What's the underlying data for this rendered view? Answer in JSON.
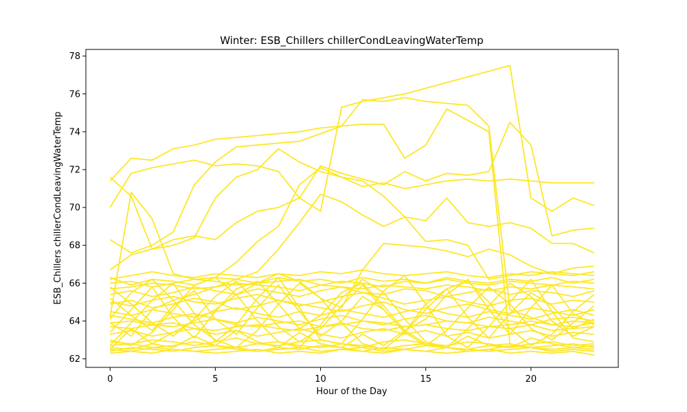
{
  "chart_data": {
    "type": "line",
    "title": "Winter: ESB_Chillers chillerCondLeavingWaterTemp",
    "xlabel": "Hour of the Day",
    "ylabel": "ESB_Chillers chillerCondLeavingWaterTemp",
    "xlim": [
      -1.15,
      24.15
    ],
    "ylim": [
      61.55,
      78.35
    ],
    "xticks": [
      0,
      5,
      10,
      15,
      20
    ],
    "yticks": [
      62,
      64,
      66,
      68,
      70,
      72,
      74,
      76,
      78
    ],
    "grid": false,
    "legend": "none",
    "line_color": "#fde725",
    "x": [
      0,
      1,
      2,
      3,
      4,
      5,
      6,
      7,
      8,
      9,
      10,
      11,
      12,
      13,
      14,
      15,
      16,
      17,
      18,
      19,
      20,
      21,
      22,
      23
    ],
    "series": [
      {
        "values": [
          71.4,
          72.6,
          72.5,
          73.1,
          73.3,
          73.6,
          73.7,
          73.8,
          73.9,
          74.0,
          74.2,
          74.3,
          74.4,
          74.4,
          72.6,
          73.3,
          75.2,
          74.6,
          74.0,
          62.8,
          62.6,
          62.4,
          62.5,
          62.4
        ]
      },
      {
        "values": [
          70.0,
          71.8,
          72.1,
          72.3,
          72.5,
          72.2,
          72.3,
          72.2,
          71.9,
          70.5,
          69.8,
          75.3,
          75.6,
          75.8,
          76.0,
          76.3,
          76.6,
          76.9,
          77.2,
          77.5,
          70.5,
          69.8,
          70.5,
          70.1
        ]
      },
      {
        "values": [
          71.6,
          70.6,
          67.8,
          68.3,
          68.5,
          68.3,
          69.2,
          69.8,
          70.0,
          70.5,
          72.2,
          71.8,
          71.5,
          71.2,
          71.9,
          71.4,
          71.8,
          71.7,
          71.9,
          74.5,
          73.3,
          68.5,
          68.8,
          68.9
        ]
      },
      {
        "values": [
          68.3,
          67.6,
          68.0,
          68.7,
          71.2,
          72.4,
          73.2,
          73.3,
          73.4,
          73.5,
          73.9,
          74.3,
          75.7,
          75.6,
          75.8,
          75.6,
          75.5,
          75.4,
          74.3,
          64.6,
          64.2,
          63.8,
          64.0,
          63.9
        ]
      },
      {
        "values": [
          66.7,
          67.5,
          67.8,
          68.0,
          68.4,
          70.5,
          71.6,
          72.0,
          73.1,
          72.4,
          71.9,
          71.6,
          71.1,
          71.3,
          71.0,
          71.2,
          71.4,
          71.5,
          71.4,
          71.5,
          71.4,
          71.3,
          71.3,
          71.3
        ]
      },
      {
        "values": [
          64.2,
          70.8,
          69.4,
          66.5,
          66.2,
          66.3,
          67.1,
          68.2,
          69.0,
          71.2,
          72.1,
          71.6,
          71.4,
          70.6,
          69.5,
          68.2,
          68.3,
          68.0,
          66.2,
          66.4,
          66.6,
          66.5,
          66.4,
          66.6
        ]
      },
      {
        "values": [
          63.9,
          63.2,
          64.6,
          65.1,
          65.4,
          65.8,
          66.2,
          66.6,
          67.8,
          69.2,
          70.7,
          70.3,
          69.6,
          69.0,
          69.5,
          69.3,
          70.5,
          69.2,
          69.0,
          69.2,
          68.9,
          68.1,
          68.1,
          67.6
        ]
      },
      {
        "values": [
          62.6,
          62.5,
          62.8,
          63.4,
          64.0,
          64.6,
          65.4,
          66.0,
          66.5,
          66.1,
          65.2,
          64.7,
          66.7,
          68.1,
          68.0,
          67.9,
          67.7,
          67.4,
          67.8,
          67.5,
          66.9,
          66.5,
          66.8,
          66.9
        ]
      },
      {
        "values": [
          66.2,
          66.4,
          66.6,
          66.4,
          66.3,
          66.5,
          66.4,
          66.3,
          66.5,
          66.4,
          66.6,
          66.5,
          66.7,
          66.5,
          66.4,
          66.5,
          66.6,
          66.4,
          66.3,
          66.5,
          66.4,
          66.6,
          66.5,
          66.4
        ]
      },
      {
        "values": [
          66.0,
          66.1,
          65.8,
          66.0,
          66.2,
          66.1,
          65.9,
          66.0,
          66.1,
          66.2,
          65.9,
          66.1,
          66.0,
          65.8,
          66.1,
          66.0,
          66.2,
          66.0,
          65.9,
          66.1,
          66.0,
          65.9,
          66.1,
          66.0
        ]
      },
      {
        "values": [
          65.7,
          65.8,
          66.0,
          65.9,
          65.7,
          65.8,
          66.0,
          65.9,
          65.8,
          65.6,
          65.9,
          65.8,
          65.7,
          65.9,
          65.8,
          65.7,
          65.9,
          65.8,
          65.6,
          65.8,
          65.7,
          65.9,
          65.8,
          65.7
        ]
      },
      {
        "values": [
          66.3,
          65.9,
          66.2,
          66.1,
          65.9,
          66.3,
          66.2,
          66.0,
          66.3,
          66.1,
          66.2,
          66.0,
          66.3,
          66.1,
          66.2,
          66.0,
          66.3,
          66.1,
          66.0,
          66.2,
          66.1,
          66.3,
          66.0,
          66.2
        ]
      },
      {
        "values": [
          65.4,
          65.6,
          65.3,
          65.5,
          65.8,
          65.6,
          65.4,
          65.7,
          65.5,
          65.3,
          65.6,
          65.8,
          65.5,
          65.4,
          65.7,
          65.6,
          65.3,
          65.5,
          65.7,
          65.4,
          65.6,
          65.5,
          65.3,
          65.6
        ]
      },
      {
        "values": [
          65.0,
          64.8,
          65.1,
          65.3,
          65.0,
          64.9,
          65.2,
          65.4,
          65.1,
          64.8,
          65.0,
          65.3,
          65.5,
          65.2,
          64.9,
          65.1,
          65.3,
          65.0,
          64.8,
          65.1,
          65.2,
          64.9,
          65.1,
          65.0
        ]
      },
      {
        "values": [
          64.9,
          65.1,
          64.7,
          64.9,
          65.2,
          65.0,
          64.6,
          64.8,
          65.1,
          64.9,
          64.7,
          64.5,
          64.8,
          65.0,
          64.6,
          64.4,
          64.7,
          64.9,
          64.6,
          64.4,
          64.7,
          64.5,
          64.3,
          64.6
        ]
      },
      {
        "values": [
          64.5,
          64.3,
          64.6,
          64.4,
          64.2,
          64.5,
          64.7,
          64.4,
          64.2,
          64.5,
          64.3,
          64.6,
          64.4,
          64.2,
          64.5,
          64.7,
          64.4,
          64.2,
          64.5,
          64.3,
          64.1,
          64.4,
          64.6,
          64.3
        ]
      },
      {
        "values": [
          64.3,
          64.1,
          63.9,
          64.2,
          64.4,
          64.1,
          63.9,
          64.2,
          64.0,
          63.8,
          64.1,
          64.3,
          64.0,
          63.8,
          64.1,
          64.3,
          64.0,
          63.9,
          64.2,
          64.0,
          63.8,
          64.1,
          64.2,
          64.0
        ]
      },
      {
        "values": [
          63.9,
          64.0,
          63.8,
          63.7,
          63.9,
          64.1,
          63.8,
          63.7,
          63.9,
          64.0,
          63.7,
          63.8,
          64.0,
          63.9,
          63.7,
          63.8,
          64.0,
          63.9,
          63.7,
          63.8,
          64.0,
          63.8,
          63.7,
          63.9
        ]
      },
      {
        "values": [
          63.7,
          63.6,
          63.8,
          63.9,
          63.6,
          63.5,
          63.7,
          63.8,
          63.6,
          63.5,
          63.7,
          63.9,
          63.6,
          63.5,
          63.7,
          63.8,
          63.6,
          63.5,
          63.7,
          63.6,
          63.8,
          63.5,
          63.6,
          63.7
        ]
      },
      {
        "values": [
          63.3,
          63.5,
          63.2,
          63.4,
          63.6,
          63.3,
          63.5,
          63.2,
          63.4,
          63.6,
          63.3,
          63.1,
          63.4,
          63.6,
          63.3,
          63.5,
          63.2,
          63.4,
          63.1,
          63.3,
          63.5,
          63.2,
          63.4,
          63.3
        ]
      },
      {
        "values": [
          62.9,
          62.8,
          63.0,
          62.9,
          62.7,
          62.9,
          63.1,
          62.8,
          62.7,
          62.9,
          63.0,
          62.8,
          62.6,
          62.9,
          63.0,
          62.8,
          62.7,
          62.9,
          62.8,
          62.6,
          62.8,
          62.9,
          62.7,
          62.8
        ]
      },
      {
        "values": [
          62.7,
          62.8,
          62.6,
          62.7,
          62.9,
          62.7,
          62.6,
          62.8,
          62.9,
          62.7,
          62.6,
          62.8,
          62.7,
          62.5,
          62.7,
          62.8,
          62.6,
          62.5,
          62.7,
          62.8,
          62.6,
          62.7,
          62.8,
          62.6
        ]
      },
      {
        "values": [
          62.5,
          62.4,
          62.6,
          62.5,
          62.4,
          62.5,
          62.6,
          62.4,
          62.5,
          62.6,
          62.4,
          62.5,
          62.6,
          62.4,
          62.5,
          62.4,
          62.6,
          62.5,
          62.4,
          62.5,
          62.6,
          62.4,
          62.5,
          62.4
        ]
      },
      {
        "values": [
          62.3,
          62.4,
          62.3,
          62.5,
          62.4,
          62.3,
          62.4,
          62.5,
          62.3,
          62.4,
          62.3,
          62.5,
          62.4,
          62.3,
          62.5,
          62.4,
          62.3,
          62.4,
          62.5,
          62.3,
          62.4,
          62.3,
          62.4,
          62.2
        ]
      },
      {
        "values": [
          62.4,
          62.6,
          62.5,
          62.4,
          62.6,
          62.7,
          62.5,
          62.4,
          62.6,
          62.5,
          62.7,
          62.6,
          62.4,
          62.6,
          62.5,
          62.7,
          62.6,
          62.4,
          62.5,
          62.7,
          62.6,
          62.5,
          62.6,
          62.5
        ]
      },
      {
        "values": [
          62.5,
          63.6,
          62.8,
          62.6,
          63.2,
          62.7,
          63.5,
          62.9,
          62.6,
          63.4,
          62.8,
          62.6,
          63.3,
          62.7,
          63.5,
          62.8,
          62.6,
          63.2,
          62.7,
          62.6,
          63.1,
          62.8,
          62.6,
          62.7
        ]
      },
      {
        "values": [
          65.2,
          64.3,
          63.5,
          64.8,
          65.6,
          64.1,
          63.3,
          64.7,
          65.9,
          64.5,
          63.2,
          64.0,
          65.3,
          64.6,
          63.4,
          64.9,
          65.7,
          64.2,
          63.1,
          64.4,
          65.5,
          64.8,
          63.6,
          64.1
        ]
      },
      {
        "values": [
          63.4,
          64.6,
          65.8,
          64.2,
          63.1,
          64.5,
          65.7,
          66.1,
          64.9,
          63.6,
          64.3,
          65.5,
          66.0,
          64.8,
          63.5,
          64.1,
          65.4,
          66.2,
          64.6,
          63.3,
          64.7,
          65.9,
          64.4,
          63.8
        ]
      },
      {
        "values": [
          62.7,
          63.9,
          65.1,
          66.0,
          64.4,
          62.9,
          63.8,
          65.2,
          66.3,
          64.7,
          63.0,
          62.8,
          64.1,
          65.6,
          66.4,
          64.9,
          63.2,
          62.6,
          63.7,
          65.0,
          66.2,
          64.5,
          63.1,
          62.9
        ]
      },
      {
        "values": [
          65.8,
          64.9,
          63.9,
          63.2,
          64.1,
          65.3,
          66.1,
          65.0,
          63.7,
          62.9,
          63.6,
          64.8,
          65.9,
          64.6,
          63.4,
          62.7,
          63.5,
          64.7,
          65.8,
          64.9,
          63.6,
          63.0,
          63.9,
          64.8
        ]
      },
      {
        "values": [
          64.1,
          65.5,
          66.2,
          65.1,
          63.8,
          63.0,
          62.6,
          63.5,
          64.9,
          66.0,
          65.2,
          63.9,
          62.8,
          62.5,
          63.4,
          64.6,
          65.7,
          66.1,
          65.0,
          63.6,
          62.7,
          63.3,
          64.5,
          65.4
        ]
      },
      {
        "values": [
          63.0,
          62.7,
          63.4,
          64.6,
          65.9,
          66.3,
          65.4,
          64.0,
          62.9,
          62.6,
          63.8,
          65.2,
          66.2,
          65.5,
          64.1,
          62.9,
          62.6,
          63.6,
          64.8,
          66.0,
          65.3,
          64.0,
          63.2,
          63.7
        ]
      }
    ]
  }
}
